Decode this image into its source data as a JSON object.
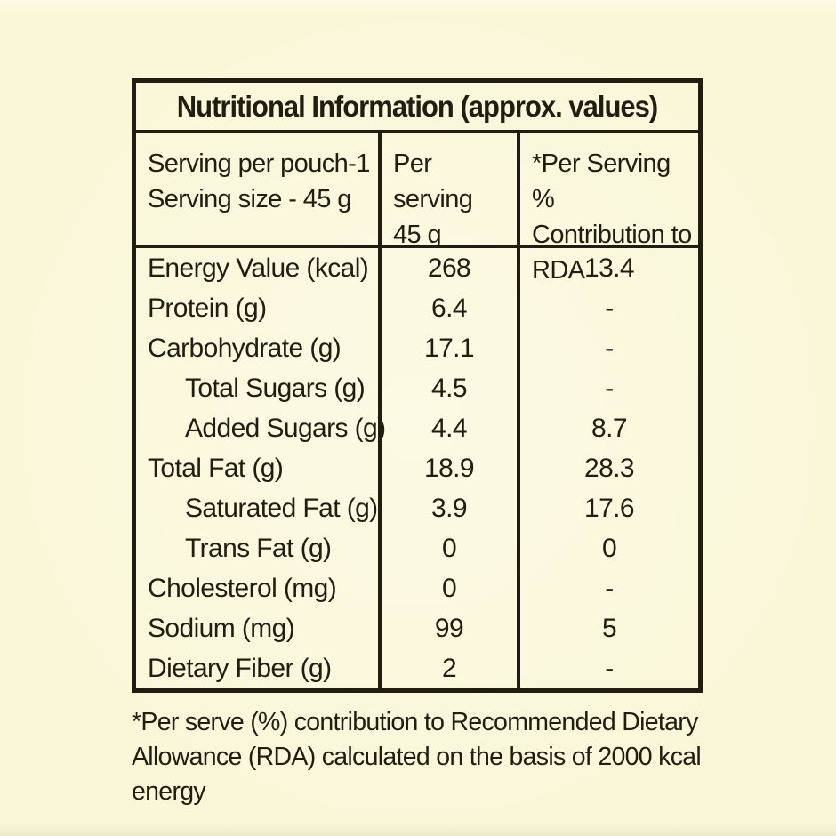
{
  "page": {
    "background": "#faf7d9",
    "ink": "#211e11"
  },
  "table": {
    "title": "Nutritional Information (approx. values)",
    "header": {
      "col1_lines": [
        "Serving per pouch-1",
        "Serving size - 45 g"
      ],
      "col2_lines": [
        "Per serving",
        "45 g"
      ],
      "col3_lines": [
        "*Per Serving %",
        "Contribution to",
        "RDA"
      ]
    },
    "rows": [
      {
        "label": "Energy Value (kcal)",
        "indent": false,
        "per_serving": "268",
        "rda_pct": "13.4"
      },
      {
        "label": "Protein (g)",
        "indent": false,
        "per_serving": "6.4",
        "rda_pct": "-"
      },
      {
        "label": "Carbohydrate (g)",
        "indent": false,
        "per_serving": "17.1",
        "rda_pct": "-"
      },
      {
        "label": "Total Sugars (g)",
        "indent": true,
        "per_serving": "4.5",
        "rda_pct": "-"
      },
      {
        "label": "Added Sugars (g)",
        "indent": true,
        "per_serving": "4.4",
        "rda_pct": "8.7"
      },
      {
        "label": "Total Fat (g)",
        "indent": false,
        "per_serving": "18.9",
        "rda_pct": "28.3"
      },
      {
        "label": "Saturated Fat (g)",
        "indent": true,
        "per_serving": "3.9",
        "rda_pct": "17.6"
      },
      {
        "label": "Trans Fat (g)",
        "indent": true,
        "per_serving": "0",
        "rda_pct": "0"
      },
      {
        "label": "Cholesterol (mg)",
        "indent": false,
        "per_serving": "0",
        "rda_pct": "-"
      },
      {
        "label": "Sodium (mg)",
        "indent": false,
        "per_serving": "99",
        "rda_pct": "5"
      },
      {
        "label": "Dietary Fiber (g)",
        "indent": false,
        "per_serving": "2",
        "rda_pct": "-"
      }
    ]
  },
  "footnote": "*Per serve (%) contribution to Recommended Dietary Allowance (RDA) calculated on the basis of 2000 kcal energy"
}
